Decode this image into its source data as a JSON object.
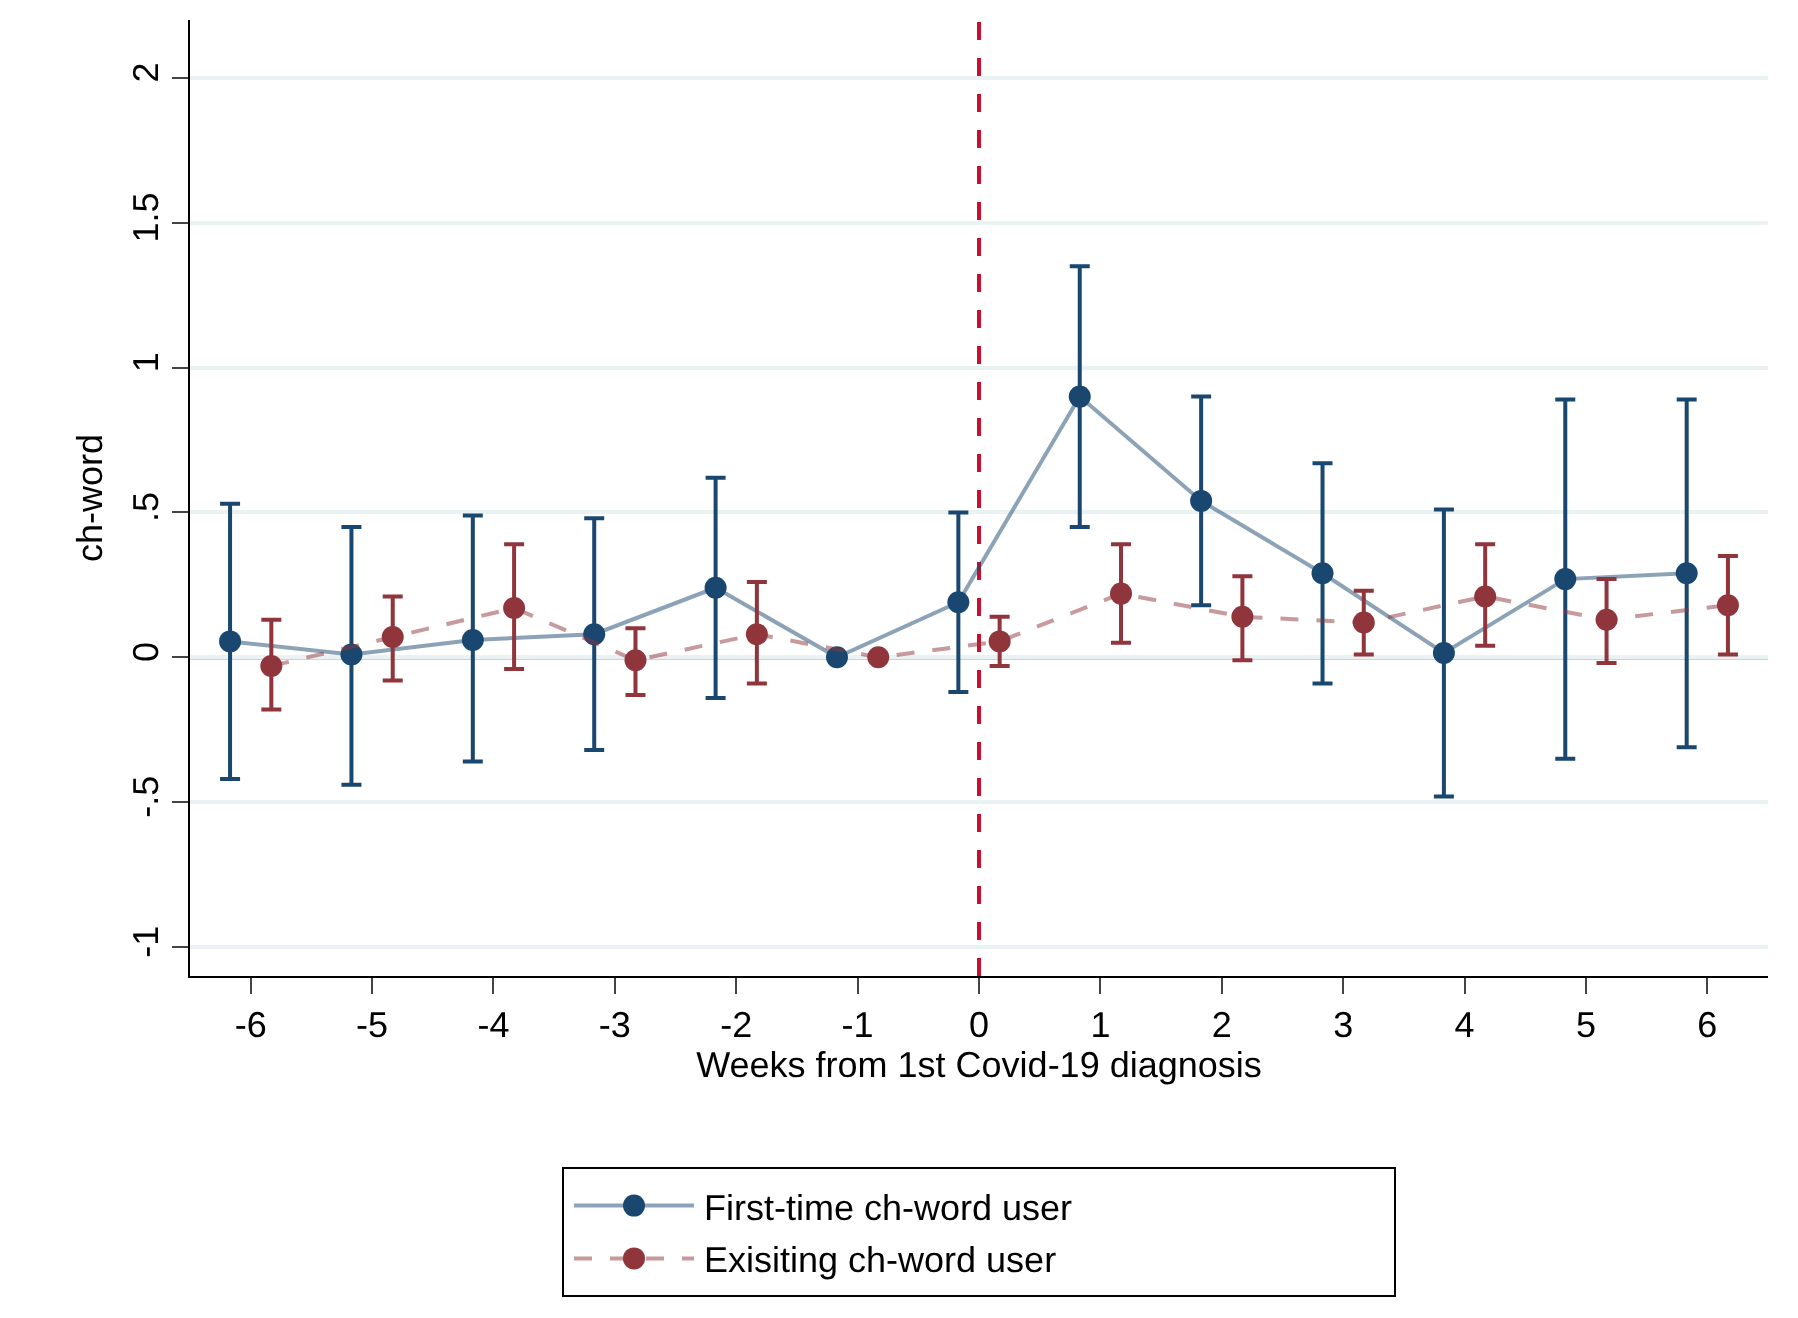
{
  "chart_data": {
    "type": "line",
    "xlabel": "Weeks from 1st Covid-19 diagnosis",
    "ylabel": "ch-word",
    "xlim": [
      -6.5,
      6.5
    ],
    "xticks": [
      -6,
      -5,
      -4,
      -3,
      -2,
      -1,
      0,
      1,
      2,
      3,
      4,
      5,
      6
    ],
    "ylim": [
      -1.1,
      2.2
    ],
    "yticks": [
      {
        "value": -1,
        "label": "-1"
      },
      {
        "value": -0.5,
        "label": "-.5"
      },
      0,
      {
        "value": 0.5,
        "label": ".5"
      },
      1,
      1.5,
      2
    ],
    "grid": "y",
    "legend": "bottom",
    "marker": "circle",
    "ref_lines": [
      {
        "axis": "y",
        "value": 0,
        "color": "#c8102e",
        "line_style": "solid"
      },
      {
        "axis": "x",
        "value": 0,
        "color": "#c8102e",
        "line_style": "dashed"
      }
    ],
    "series": [
      {
        "name": "First-time ch-word user",
        "color": "#1a476f",
        "line_style": "solid",
        "x": [
          -6.17,
          -5.17,
          -4.17,
          -3.17,
          -2.17,
          -1.17,
          -0.17,
          0.83,
          1.83,
          2.83,
          3.83,
          4.83,
          5.83
        ],
        "values": [
          0.055,
          0.01,
          0.06,
          0.08,
          0.24,
          0,
          0.19,
          0.9,
          0.54,
          0.29,
          0.015,
          0.27,
          0.29
        ],
        "errors": [
          [
            -0.42,
            0.53
          ],
          [
            -0.44,
            0.45
          ],
          [
            -0.36,
            0.49
          ],
          [
            -0.32,
            0.48
          ],
          [
            -0.14,
            0.62
          ],
          null,
          [
            -0.12,
            0.5
          ],
          [
            0.45,
            1.35
          ],
          [
            0.18,
            0.9
          ],
          [
            -0.09,
            0.67
          ],
          [
            -0.48,
            0.51
          ],
          [
            -0.35,
            0.89
          ],
          [
            -0.31,
            0.89
          ]
        ]
      },
      {
        "name": "Exisiting ch-word user",
        "color": "#90353b",
        "line_style": "dashed",
        "x": [
          -5.83,
          -4.83,
          -3.83,
          -2.83,
          -1.83,
          -0.83,
          0.17,
          1.17,
          2.17,
          3.17,
          4.17,
          5.17,
          6.17
        ],
        "values": [
          -0.03,
          0.07,
          0.17,
          -0.01,
          0.08,
          0,
          0.055,
          0.22,
          0.14,
          0.12,
          0.21,
          0.13,
          0.18
        ],
        "errors": [
          [
            -0.18,
            0.13
          ],
          [
            -0.08,
            0.21
          ],
          [
            -0.04,
            0.39
          ],
          [
            -0.13,
            0.1
          ],
          [
            -0.09,
            0.26
          ],
          null,
          [
            -0.03,
            0.14
          ],
          [
            0.05,
            0.39
          ],
          [
            -0.01,
            0.28
          ],
          [
            0.01,
            0.23
          ],
          [
            0.04,
            0.39
          ],
          [
            -0.02,
            0.27
          ],
          [
            0.01,
            0.35
          ]
        ]
      }
    ]
  }
}
